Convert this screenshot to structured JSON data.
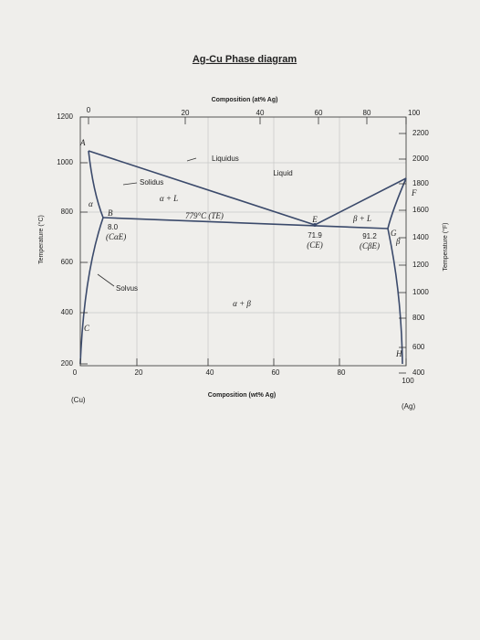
{
  "title": "Ag-Cu Phase diagram",
  "top_axis": {
    "label": "Composition (at% Ag)",
    "ticks": [
      "0",
      "20",
      "40",
      "60",
      "80",
      "100"
    ]
  },
  "bottom_axis": {
    "label": "Composition (wt% Ag)",
    "ticks": [
      "0",
      "20",
      "40",
      "60",
      "80",
      "100"
    ],
    "left_end": "(Cu)",
    "right_end": "(Ag)"
  },
  "left_axis": {
    "label": "Temperature (°C)",
    "ticks": [
      "1200",
      "1000",
      "800",
      "600",
      "400",
      "200"
    ]
  },
  "right_axis": {
    "label": "Temperature (°F)",
    "ticks": [
      "2200",
      "2000",
      "1800",
      "1600",
      "1400",
      "1200",
      "1000",
      "800",
      "600",
      "400"
    ]
  },
  "regions": {
    "liquidus": "Liquidus",
    "liquid": "Liquid",
    "solidus": "Solidus",
    "alpha_l": "α + L",
    "alpha": "α",
    "beta_l": "β + L",
    "beta": "β",
    "solvus": "Solvus",
    "alpha_beta": "α + β"
  },
  "points": {
    "a": "A",
    "b": "B",
    "c": "C",
    "e": "E",
    "f": "F",
    "g": "G",
    "h": "H"
  },
  "annotations": {
    "eutectic_temp": "779°C (TE)",
    "b_comp": "8.0",
    "b_label": "(CαE)",
    "e_comp": "71.9",
    "e_label": "(CE)",
    "g_comp": "91.2",
    "g_label": "(CβE)"
  }
}
